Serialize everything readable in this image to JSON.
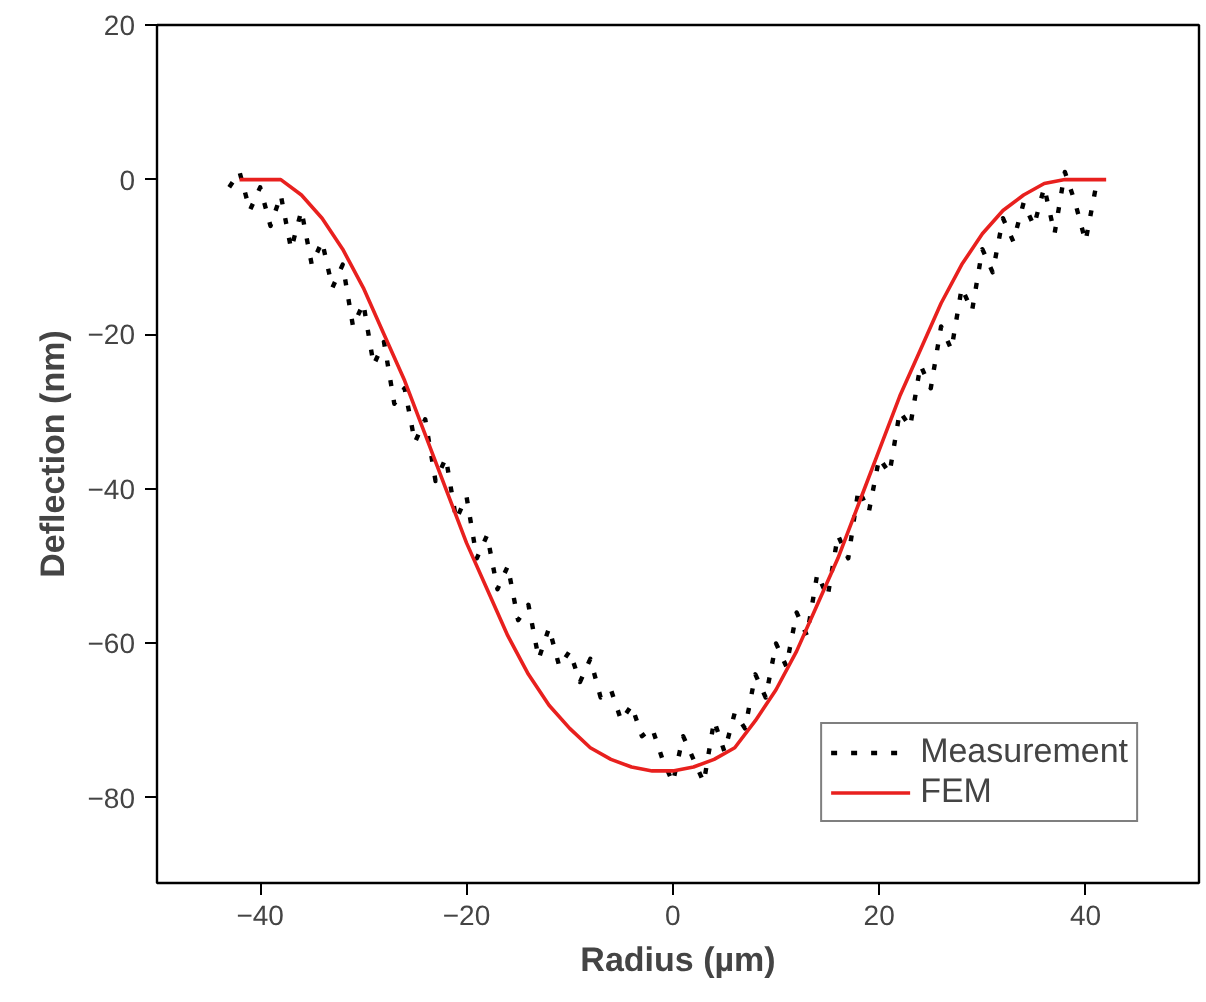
{
  "chart_data": {
    "type": "line",
    "xlabel": "Radius (µm)",
    "ylabel": "Deflection (nm)",
    "xlim": [
      -50,
      51
    ],
    "ylim": [
      -91,
      20
    ],
    "xticks": [
      -40,
      -20,
      0,
      20,
      40
    ],
    "yticks": [
      -80,
      -60,
      -40,
      -20,
      0,
      20
    ],
    "grid": false,
    "legend": "bottom right",
    "series": [
      {
        "name": "Measurement",
        "color": "#000000",
        "line_style": "dotted",
        "x": [
          -43,
          -42,
          -41,
          -40,
          -39,
          -38,
          -37,
          -36,
          -35,
          -34,
          -33,
          -32,
          -31,
          -30,
          -29,
          -28,
          -27,
          -26,
          -25,
          -24,
          -23,
          -22,
          -21,
          -20,
          -19,
          -18,
          -17,
          -16,
          -15,
          -14,
          -13,
          -12,
          -11,
          -10,
          -9,
          -8,
          -7,
          -6,
          -5,
          -4,
          -3,
          -2,
          -1,
          0,
          1,
          2,
          3,
          4,
          5,
          6,
          7,
          8,
          9,
          10,
          11,
          12,
          13,
          14,
          15,
          16,
          17,
          18,
          19,
          20,
          21,
          22,
          23,
          24,
          25,
          26,
          27,
          28,
          29,
          30,
          31,
          32,
          33,
          34,
          35,
          36,
          37,
          38,
          39,
          40,
          41
        ],
        "values": [
          -1,
          1,
          -4,
          -1,
          -6,
          -2,
          -9,
          -4,
          -11,
          -8,
          -14,
          -11,
          -19,
          -16,
          -24,
          -21,
          -29,
          -27,
          -34,
          -31,
          -39,
          -36,
          -44,
          -41,
          -49,
          -46,
          -53,
          -50,
          -57,
          -55,
          -62,
          -58,
          -63,
          -61,
          -65,
          -62,
          -67,
          -66,
          -70,
          -68,
          -72,
          -71,
          -75,
          -78,
          -72,
          -75,
          -78,
          -70,
          -74,
          -69,
          -71,
          -64,
          -67,
          -60,
          -63,
          -56,
          -59,
          -51,
          -54,
          -46,
          -49,
          -40,
          -43,
          -36,
          -38,
          -30,
          -32,
          -24,
          -27,
          -19,
          -22,
          -14,
          -17,
          -9,
          -12,
          -5,
          -8,
          -3,
          -6,
          -1,
          -7,
          1,
          -3,
          -8,
          -1
        ]
      },
      {
        "name": "FEM",
        "color": "#e8201e",
        "line_style": "solid",
        "x": [
          -42,
          -38,
          -36,
          -34,
          -32,
          -30,
          -28,
          -26,
          -24,
          -22,
          -20,
          -18,
          -16,
          -14,
          -12,
          -10,
          -8,
          -6,
          -4,
          -2,
          0,
          2,
          4,
          6,
          8,
          10,
          12,
          14,
          16,
          18,
          20,
          22,
          24,
          26,
          28,
          30,
          32,
          34,
          36,
          38,
          42
        ],
        "values": [
          0,
          0,
          -2,
          -5,
          -9,
          -14,
          -20,
          -26,
          -33,
          -40,
          -47,
          -53,
          -59,
          -64,
          -68,
          -71,
          -73.5,
          -75,
          -76,
          -76.5,
          -76.5,
          -76,
          -75,
          -73.5,
          -70,
          -66,
          -61,
          -55,
          -49,
          -42,
          -35,
          -28,
          -22,
          -16,
          -11,
          -7,
          -4,
          -2,
          -0.5,
          0,
          0
        ]
      }
    ]
  }
}
